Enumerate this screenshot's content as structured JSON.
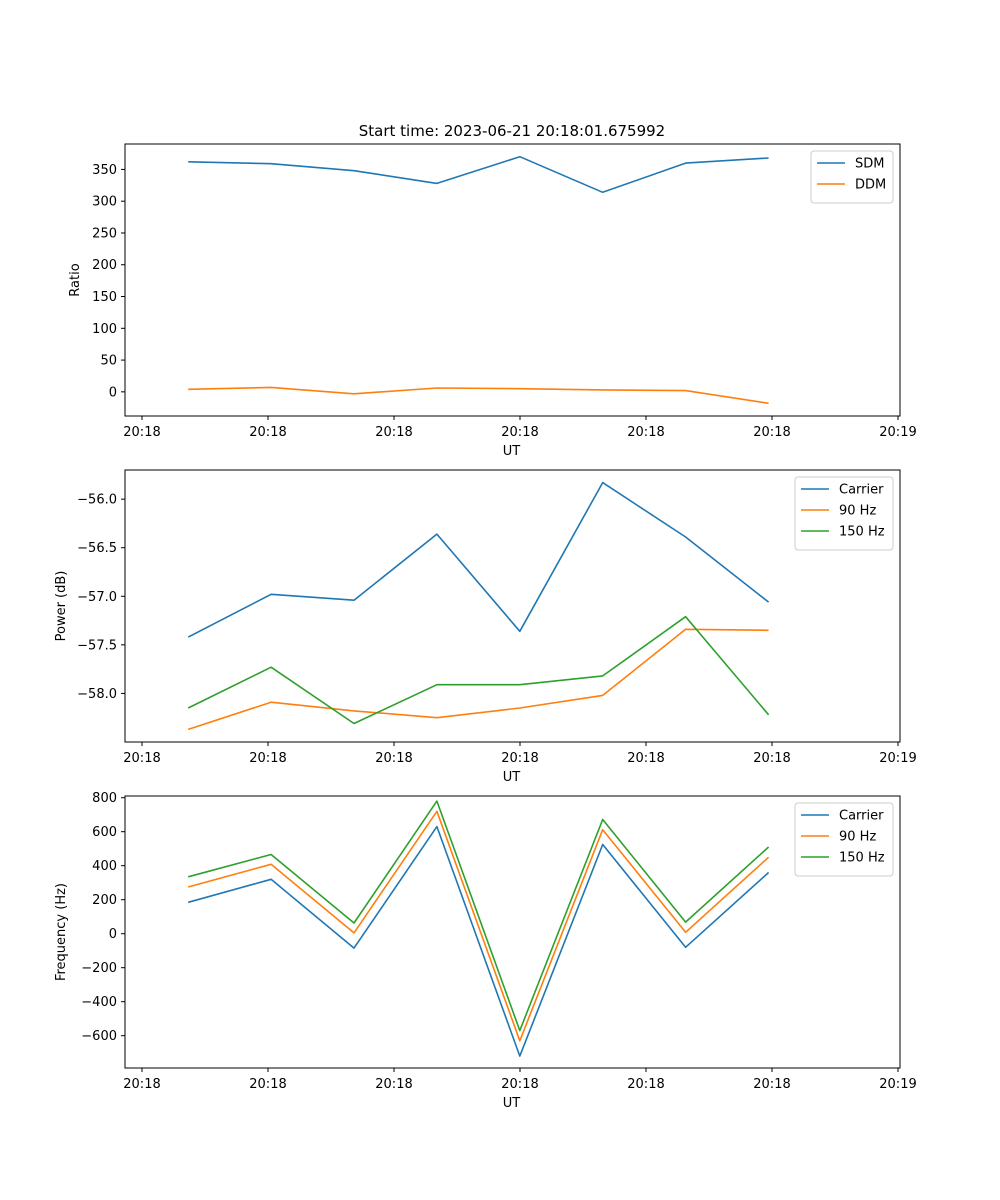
{
  "figure": {
    "title": "Start time: 2023-06-21 20:18:01.675992"
  },
  "chart_data": [
    {
      "type": "line",
      "xlabel": "UT",
      "ylabel": "Ratio",
      "x_tick_labels": [
        "20:18",
        "20:18",
        "20:18",
        "20:18",
        "20:18",
        "20:18",
        "20:19"
      ],
      "xlim": [
        -0.2,
        9.0
      ],
      "ylim": [
        -38,
        390
      ],
      "y_ticks": [
        0,
        50,
        100,
        150,
        200,
        250,
        300,
        350
      ],
      "y_tick_labels": [
        "0",
        "50",
        "100",
        "150",
        "200",
        "250",
        "300",
        "350"
      ],
      "legend_position": "top-right",
      "series": [
        {
          "name": "SDM",
          "color": "#1f77b4",
          "values": [
            362,
            359,
            348,
            328,
            370,
            314,
            360,
            368
          ]
        },
        {
          "name": "DDM",
          "color": "#ff7f0e",
          "values": [
            4,
            7,
            -3,
            6,
            5,
            3,
            2,
            -18
          ]
        }
      ]
    },
    {
      "type": "line",
      "xlabel": "UT",
      "ylabel": "Power (dB)",
      "x_tick_labels": [
        "20:18",
        "20:18",
        "20:18",
        "20:18",
        "20:18",
        "20:18",
        "20:19"
      ],
      "xlim": [
        -0.2,
        9.0
      ],
      "ylim": [
        -58.5,
        -55.7
      ],
      "y_ticks": [
        -58.0,
        -57.5,
        -57.0,
        -56.5,
        -56.0
      ],
      "y_tick_labels": [
        "−58.0",
        "−57.5",
        "−57.0",
        "−56.5",
        "−56.0"
      ],
      "legend_position": "top-right",
      "series": [
        {
          "name": "Carrier",
          "color": "#1f77b4",
          "values": [
            -57.42,
            -56.98,
            -57.04,
            -56.36,
            -57.36,
            -55.83,
            -56.39,
            -57.06
          ]
        },
        {
          "name": "90 Hz",
          "color": "#ff7f0e",
          "values": [
            -58.37,
            -58.09,
            -58.18,
            -58.25,
            -58.15,
            -58.02,
            -57.34,
            -57.35
          ]
        },
        {
          "name": "150 Hz",
          "color": "#2ca02c",
          "values": [
            -58.15,
            -57.73,
            -58.31,
            -57.91,
            -57.91,
            -57.82,
            -57.21,
            -58.22
          ]
        }
      ]
    },
    {
      "type": "line",
      "xlabel": "UT",
      "ylabel": "Frequency (Hz)",
      "x_tick_labels": [
        "20:18",
        "20:18",
        "20:18",
        "20:18",
        "20:18",
        "20:18",
        "20:19"
      ],
      "xlim": [
        -0.2,
        9.0
      ],
      "ylim": [
        -790,
        810
      ],
      "y_ticks": [
        -600,
        -400,
        -200,
        0,
        200,
        400,
        600,
        800
      ],
      "y_tick_labels": [
        "−600",
        "−400",
        "−200",
        "0",
        "200",
        "400",
        "600",
        "800"
      ],
      "legend_position": "top-right",
      "series": [
        {
          "name": "Carrier",
          "color": "#1f77b4",
          "values": [
            185,
            320,
            -85,
            630,
            -720,
            525,
            -80,
            360
          ]
        },
        {
          "name": "90 Hz",
          "color": "#ff7f0e",
          "values": [
            275,
            408,
            5,
            720,
            -630,
            612,
            8,
            450
          ]
        },
        {
          "name": "150 Hz",
          "color": "#2ca02c",
          "values": [
            335,
            466,
            63,
            780,
            -570,
            672,
            68,
            510
          ]
        }
      ]
    }
  ]
}
